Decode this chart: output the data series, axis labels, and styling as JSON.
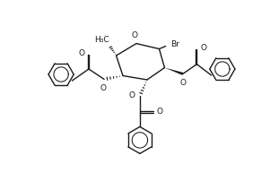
{
  "bg_color": "#ffffff",
  "line_color": "#1a1a1a",
  "line_width": 1.0,
  "font_size": 6.5,
  "fig_width": 3.01,
  "fig_height": 2.02,
  "dpi": 100,
  "xlim": [
    0,
    10
  ],
  "ylim": [
    0,
    6.6
  ]
}
